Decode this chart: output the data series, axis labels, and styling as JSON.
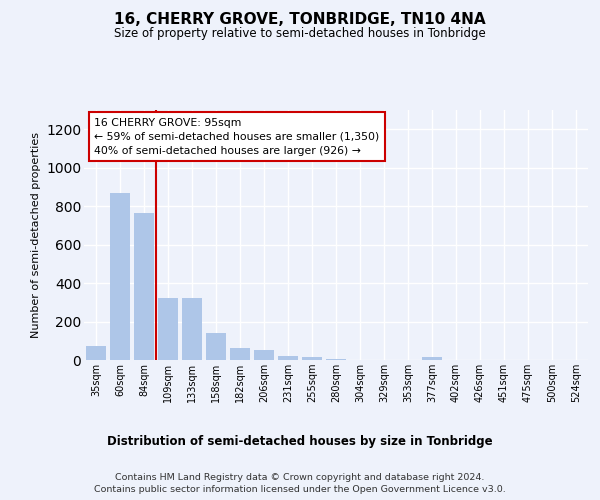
{
  "title": "16, CHERRY GROVE, TONBRIDGE, TN10 4NA",
  "subtitle": "Size of property relative to semi-detached houses in Tonbridge",
  "xlabel": "Distribution of semi-detached houses by size in Tonbridge",
  "ylabel": "Number of semi-detached properties",
  "footer_line1": "Contains HM Land Registry data © Crown copyright and database right 2024.",
  "footer_line2": "Contains public sector information licensed under the Open Government Licence v3.0.",
  "annotation_line1": "16 CHERRY GROVE: 95sqm",
  "annotation_line2": "← 59% of semi-detached houses are smaller (1,350)",
  "annotation_line3": "40% of semi-detached houses are larger (926) →",
  "categories": [
    "35sqm",
    "60sqm",
    "84sqm",
    "109sqm",
    "133sqm",
    "158sqm",
    "182sqm",
    "206sqm",
    "231sqm",
    "255sqm",
    "280sqm",
    "304sqm",
    "329sqm",
    "353sqm",
    "377sqm",
    "402sqm",
    "426sqm",
    "451sqm",
    "475sqm",
    "500sqm",
    "524sqm"
  ],
  "values": [
    75,
    870,
    765,
    325,
    325,
    140,
    65,
    50,
    20,
    15,
    5,
    0,
    0,
    0,
    15,
    0,
    0,
    0,
    0,
    0,
    0
  ],
  "bar_color": "#aec6e8",
  "marker_color": "#cc0000",
  "ylim": [
    0,
    1300
  ],
  "yticks": [
    0,
    200,
    400,
    600,
    800,
    1000,
    1200
  ],
  "background_color": "#eef2fb",
  "axes_background": "#eef2fb",
  "grid_color": "#ffffff",
  "annotation_box_color": "#ffffff",
  "annotation_border_color": "#cc0000",
  "marker_bin_index": 2.5
}
